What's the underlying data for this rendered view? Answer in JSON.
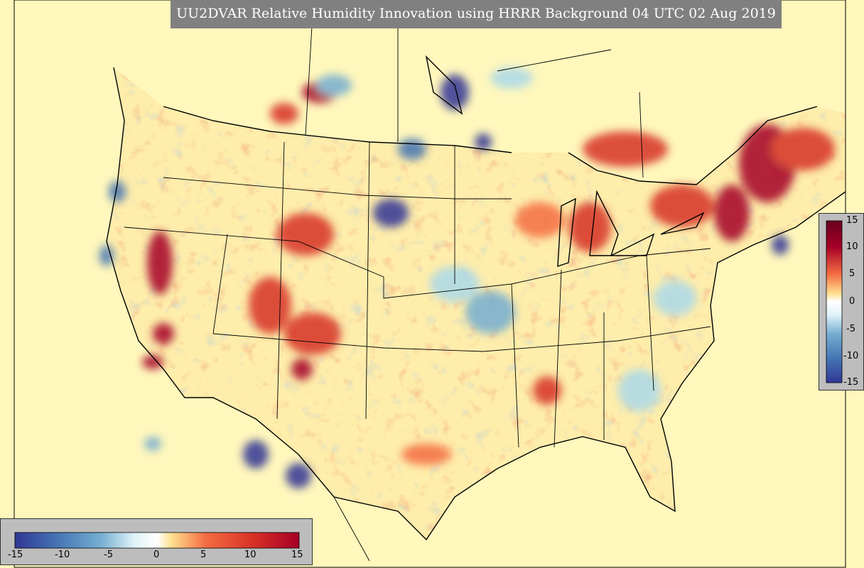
{
  "title": "UU2DVAR Relative Humidity Innovation using HRRR Background 04 UTC 02 Aug 2019",
  "colorbar": {
    "min": -15,
    "max": 15,
    "ticks": [
      "15",
      "10",
      "5",
      "0",
      "-5",
      "-10",
      "-15"
    ],
    "htick_labels": [
      "-15",
      "-10",
      "-5",
      "0",
      "5",
      "10",
      "15"
    ],
    "colors": [
      "#313695",
      "#4575b4",
      "#74add1",
      "#abd9e9",
      "#e0f3f8",
      "#ffffff",
      "#fee090",
      "#fdae61",
      "#f46d43",
      "#d73027",
      "#a50026",
      "#67001f"
    ]
  },
  "map": {
    "background_color": "#fff7bc",
    "region": "Continental United States"
  }
}
